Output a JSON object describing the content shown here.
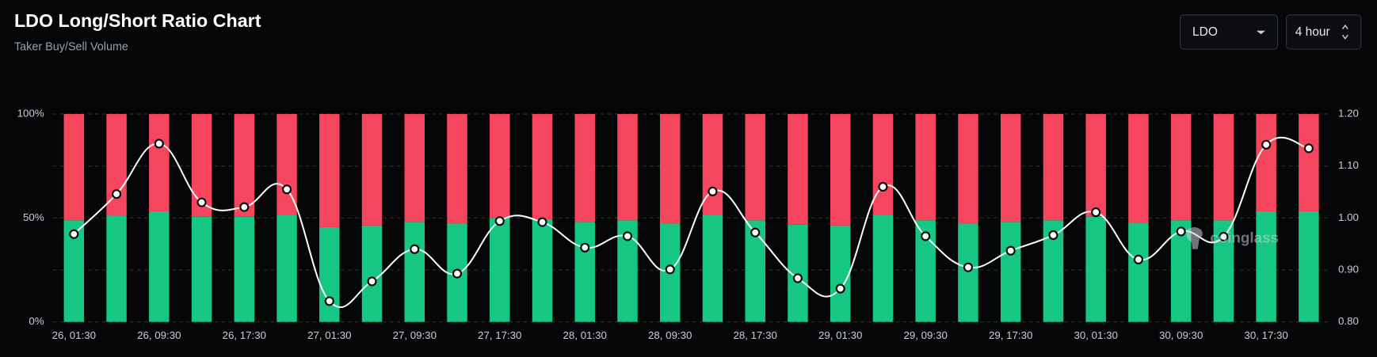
{
  "header": {
    "title": "LDO Long/Short Ratio Chart",
    "subtitle": "Taker Buy/Sell Volume"
  },
  "controls": {
    "symbol": "LDO",
    "interval": "4 hour"
  },
  "watermark": "coinglass",
  "chart_data": {
    "type": "bar",
    "stacked": true,
    "categories": [
      "26, 01:30",
      null,
      "26, 09:30",
      null,
      "26, 17:30",
      null,
      "27, 01:30",
      null,
      "27, 09:30",
      null,
      "27, 17:30",
      null,
      "28, 01:30",
      null,
      "28, 09:30",
      null,
      "28, 17:30",
      null,
      "29, 01:30",
      null,
      "29, 09:30",
      null,
      "29, 17:30",
      null,
      "30, 01:30",
      null,
      "30, 09:30",
      null,
      "30, 17:30",
      null
    ],
    "series": [
      {
        "color": "#16c784",
        "values": [
          48.9,
          51.1,
          53.2,
          50.6,
          50.6,
          51.5,
          45.6,
          46.4,
          48.1,
          47.3,
          49.8,
          49.4,
          48.1,
          48.9,
          47.3,
          51.5,
          48.9,
          46.8,
          46.4,
          51.5,
          48.9,
          47.3,
          48.1,
          48.9,
          50.6,
          47.7,
          48.9,
          48.9,
          53.2,
          53.2
        ]
      },
      {
        "color": "#f6465d",
        "values": [
          51.1,
          48.9,
          46.8,
          49.4,
          49.4,
          48.5,
          54.4,
          53.6,
          51.9,
          52.7,
          50.2,
          50.6,
          51.9,
          51.1,
          52.7,
          48.5,
          51.1,
          53.2,
          53.6,
          48.5,
          51.1,
          52.7,
          51.9,
          51.1,
          49.4,
          52.3,
          51.1,
          51.1,
          46.8,
          46.8
        ]
      },
      {
        "type": "line",
        "axis": "y2",
        "color": "#ffffff",
        "values": [
          0.969,
          1.046,
          1.143,
          1.03,
          1.021,
          1.055,
          0.84,
          0.878,
          0.94,
          0.893,
          0.994,
          0.992,
          0.943,
          0.965,
          0.901,
          1.051,
          0.972,
          0.884,
          0.864,
          1.06,
          0.965,
          0.905,
          0.937,
          0.967,
          1.011,
          0.92,
          0.974,
          0.964,
          1.141,
          1.134
        ]
      }
    ],
    "ylim": [
      0,
      100
    ],
    "yticks": [
      {
        "value": 0,
        "label": "0%"
      },
      {
        "value": 50,
        "label": "50%"
      },
      {
        "value": 100,
        "label": "100%"
      }
    ],
    "y2lim": [
      0.8,
      1.2
    ],
    "y2ticks": [
      {
        "value": 0.8,
        "label": "0.80"
      },
      {
        "value": 0.9,
        "label": "0.90"
      },
      {
        "value": 1.0,
        "label": "1.00"
      },
      {
        "value": 1.1,
        "label": "1.10"
      },
      {
        "value": 1.2,
        "label": "1.20"
      }
    ],
    "grid": true
  }
}
